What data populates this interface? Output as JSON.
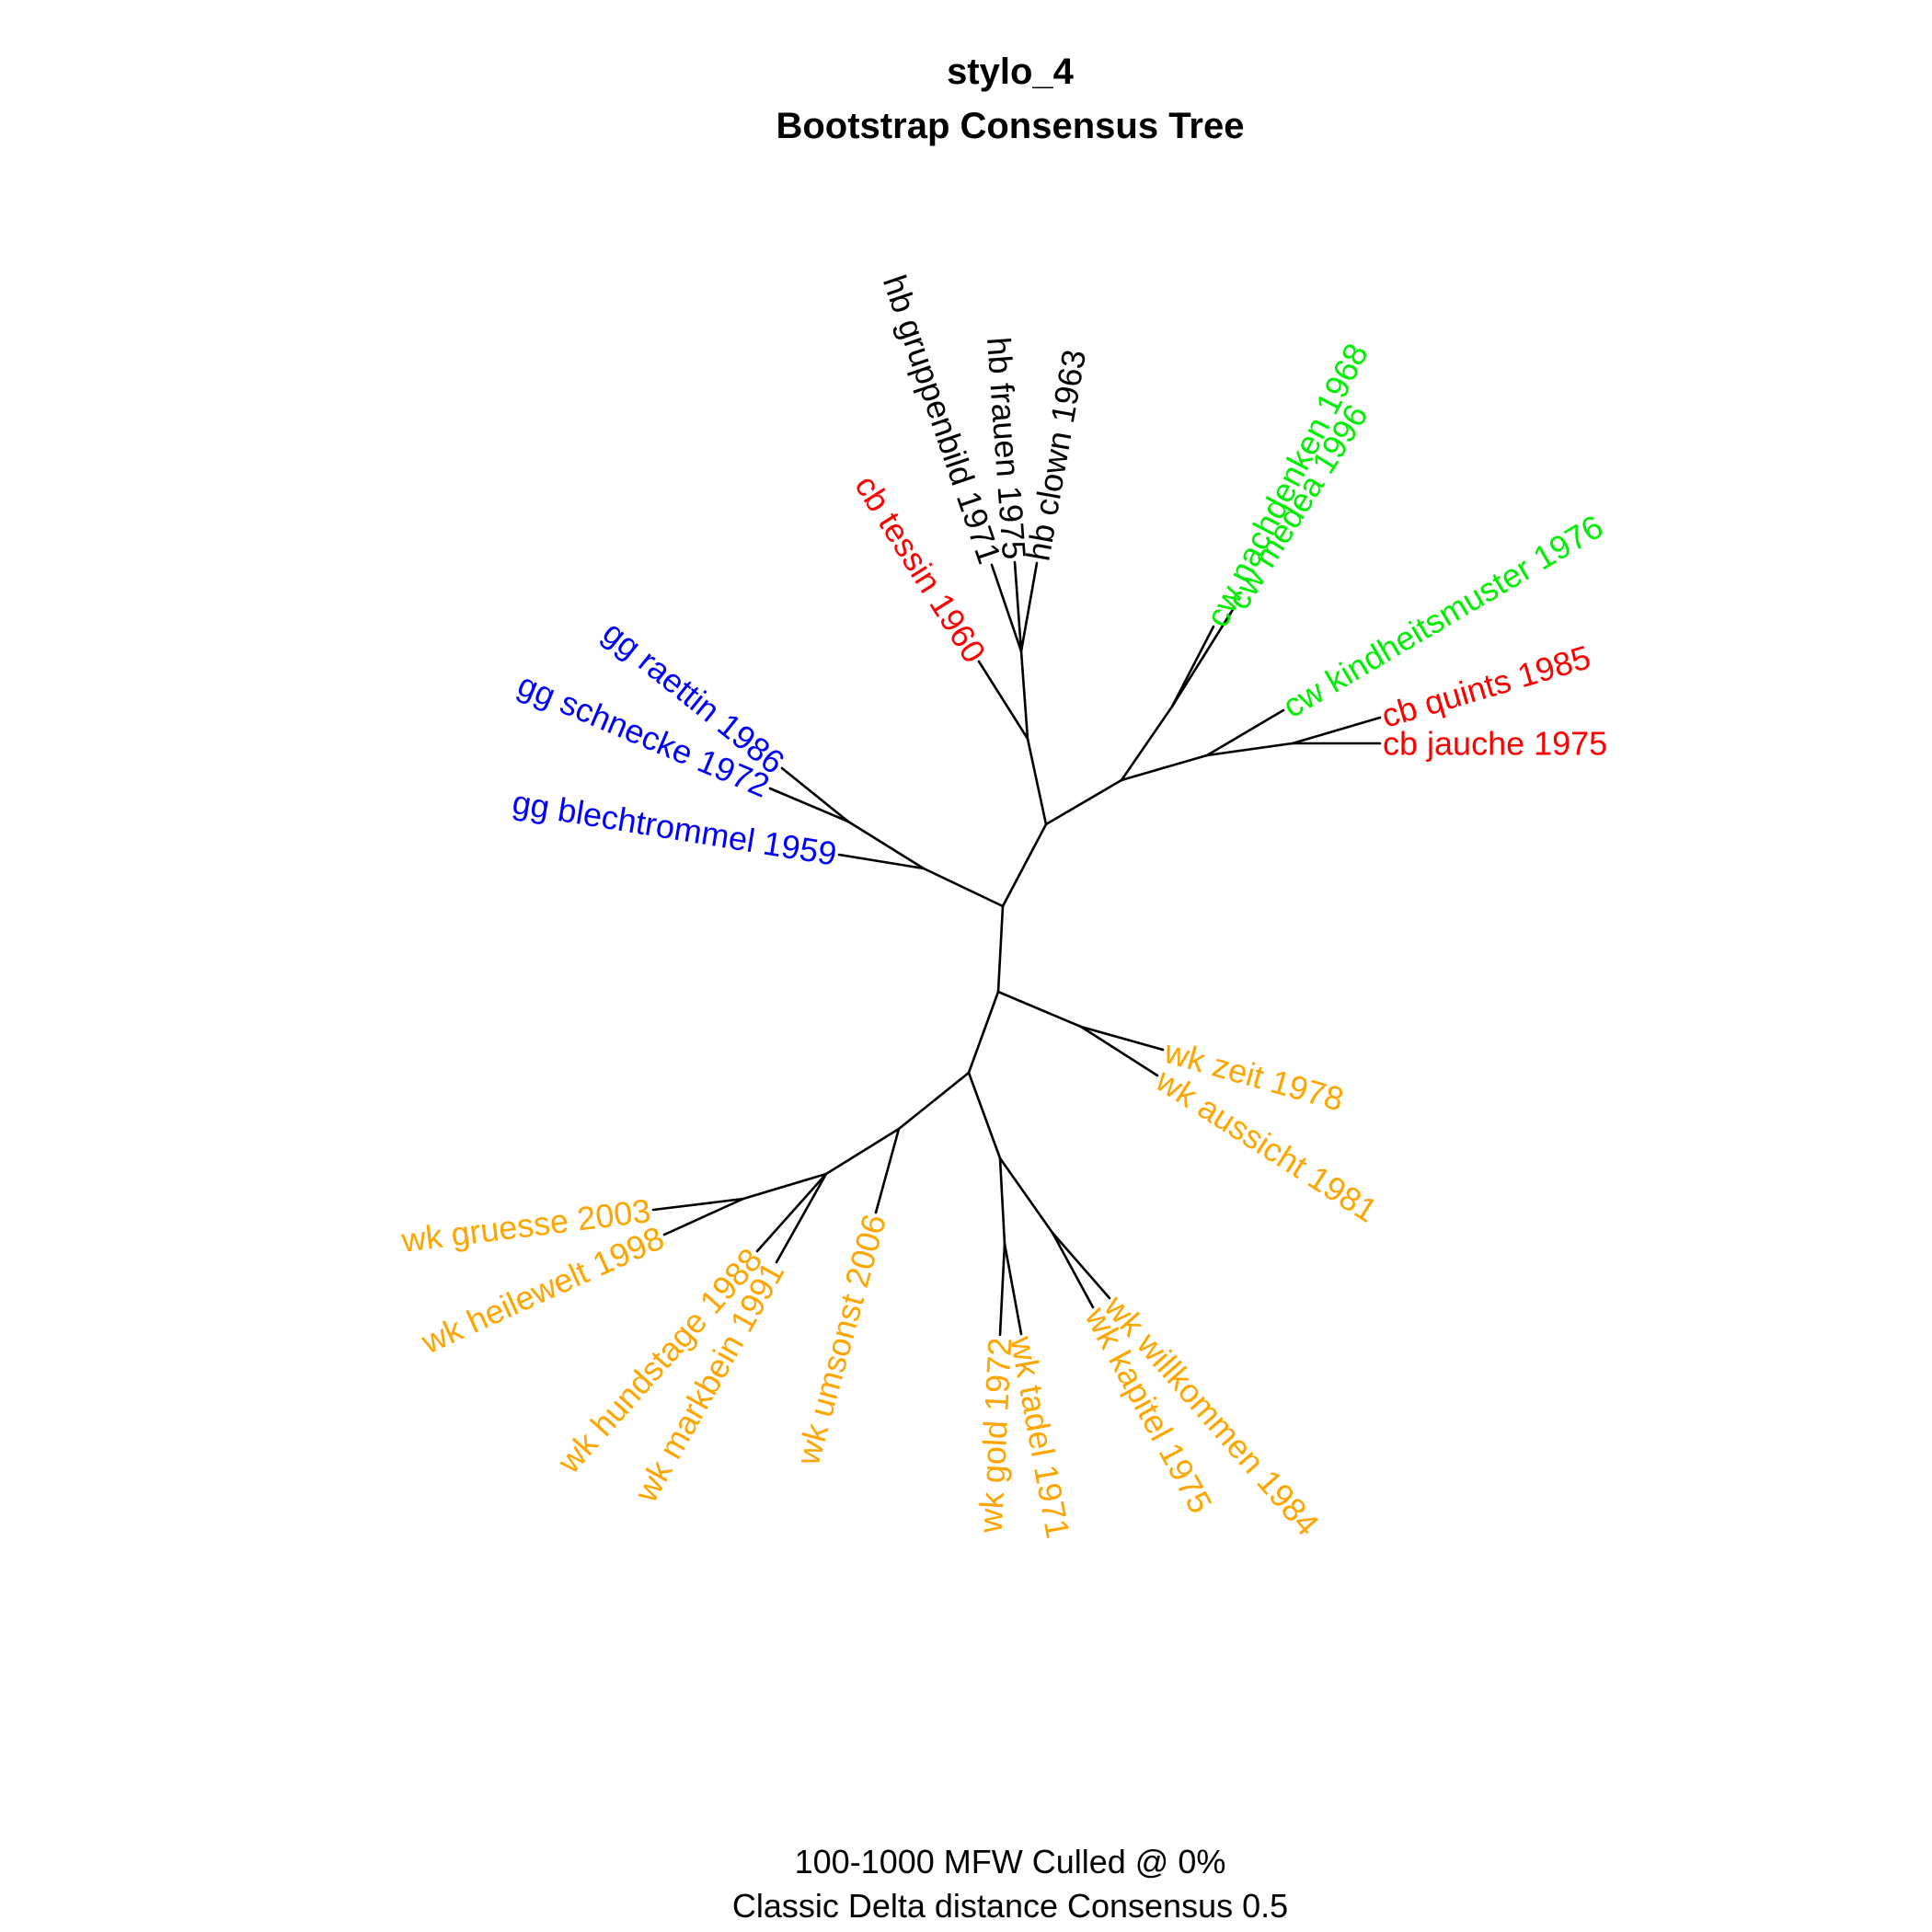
{
  "title": {
    "line1": "stylo_4",
    "line2": "Bootstrap Consensus Tree"
  },
  "caption": {
    "line1": "100-1000 MFW  Culled @ 0%",
    "line2": "Classic Delta distance Consensus 0.5"
  },
  "colors": {
    "hb": "#000000",
    "cb": "#ff0000",
    "cw": "#00ee00",
    "gg": "#0000ff",
    "wk": "#ffa500"
  },
  "tree": {
    "type": "unrooted",
    "leaves": [
      {
        "label": "hb gruppenbild 1971",
        "group": "hb"
      },
      {
        "label": "hb frauen 1975",
        "group": "hb"
      },
      {
        "label": "hb clown 1963",
        "group": "hb"
      },
      {
        "label": "cb tessin 1960",
        "group": "cb"
      },
      {
        "label": "cw nachdenken 1968",
        "group": "cw"
      },
      {
        "label": "cw medea 1996",
        "group": "cw"
      },
      {
        "label": "cw kindheitsmuster 1976",
        "group": "cw"
      },
      {
        "label": "cb quints 1985",
        "group": "cb"
      },
      {
        "label": "cb jauche 1975",
        "group": "cb"
      },
      {
        "label": "gg raettin 1986",
        "group": "gg"
      },
      {
        "label": "gg schnecke 1972",
        "group": "gg"
      },
      {
        "label": "gg blechtrommel 1959",
        "group": "gg"
      },
      {
        "label": "wk zeit 1978",
        "group": "wk"
      },
      {
        "label": "wk aussicht 1981",
        "group": "wk"
      },
      {
        "label": "wk gruesse 2003",
        "group": "wk"
      },
      {
        "label": "wk heilewelt 1998",
        "group": "wk"
      },
      {
        "label": "wk hundstage 1988",
        "group": "wk"
      },
      {
        "label": "wk markbein 1991",
        "group": "wk"
      },
      {
        "label": "wk umsonst 2006",
        "group": "wk"
      },
      {
        "label": "wk gold 1972",
        "group": "wk"
      },
      {
        "label": "wk tadel 1971",
        "group": "wk"
      },
      {
        "label": "wk kapitel 1975",
        "group": "wk"
      },
      {
        "label": "wk willkommen 1984",
        "group": "wk"
      }
    ]
  }
}
